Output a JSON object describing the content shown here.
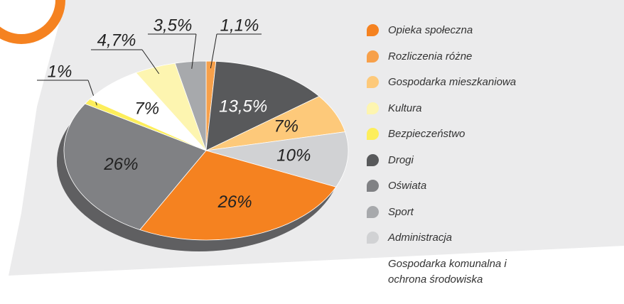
{
  "chart_data": {
    "type": "pie",
    "categories": [
      "Opieka społeczna",
      "Rozliczenia różne",
      "Gospodarka mieszkaniowa",
      "Kultura",
      "Bezpieczeństwo",
      "Drogi",
      "Oświata",
      "Sport",
      "Administracja",
      "Gospodarka komunalna i ochrona środowiska"
    ],
    "values": [
      26,
      1.1,
      7,
      4.7,
      1,
      13.5,
      26,
      3.5,
      10,
      7
    ],
    "value_labels": [
      "26%",
      "1,1%",
      "7%",
      "4,7%",
      "1%",
      "13,5%",
      "26%",
      "3,5%",
      "10%",
      "7%"
    ],
    "colors": [
      "#f58220",
      "#f7a04a",
      "#fdc97a",
      "#fdf5b0",
      "#fdee5b",
      "#58595b",
      "#808184",
      "#a7a9ac",
      "#d1d2d4",
      "#ffffff"
    ],
    "legend": "right"
  }
}
